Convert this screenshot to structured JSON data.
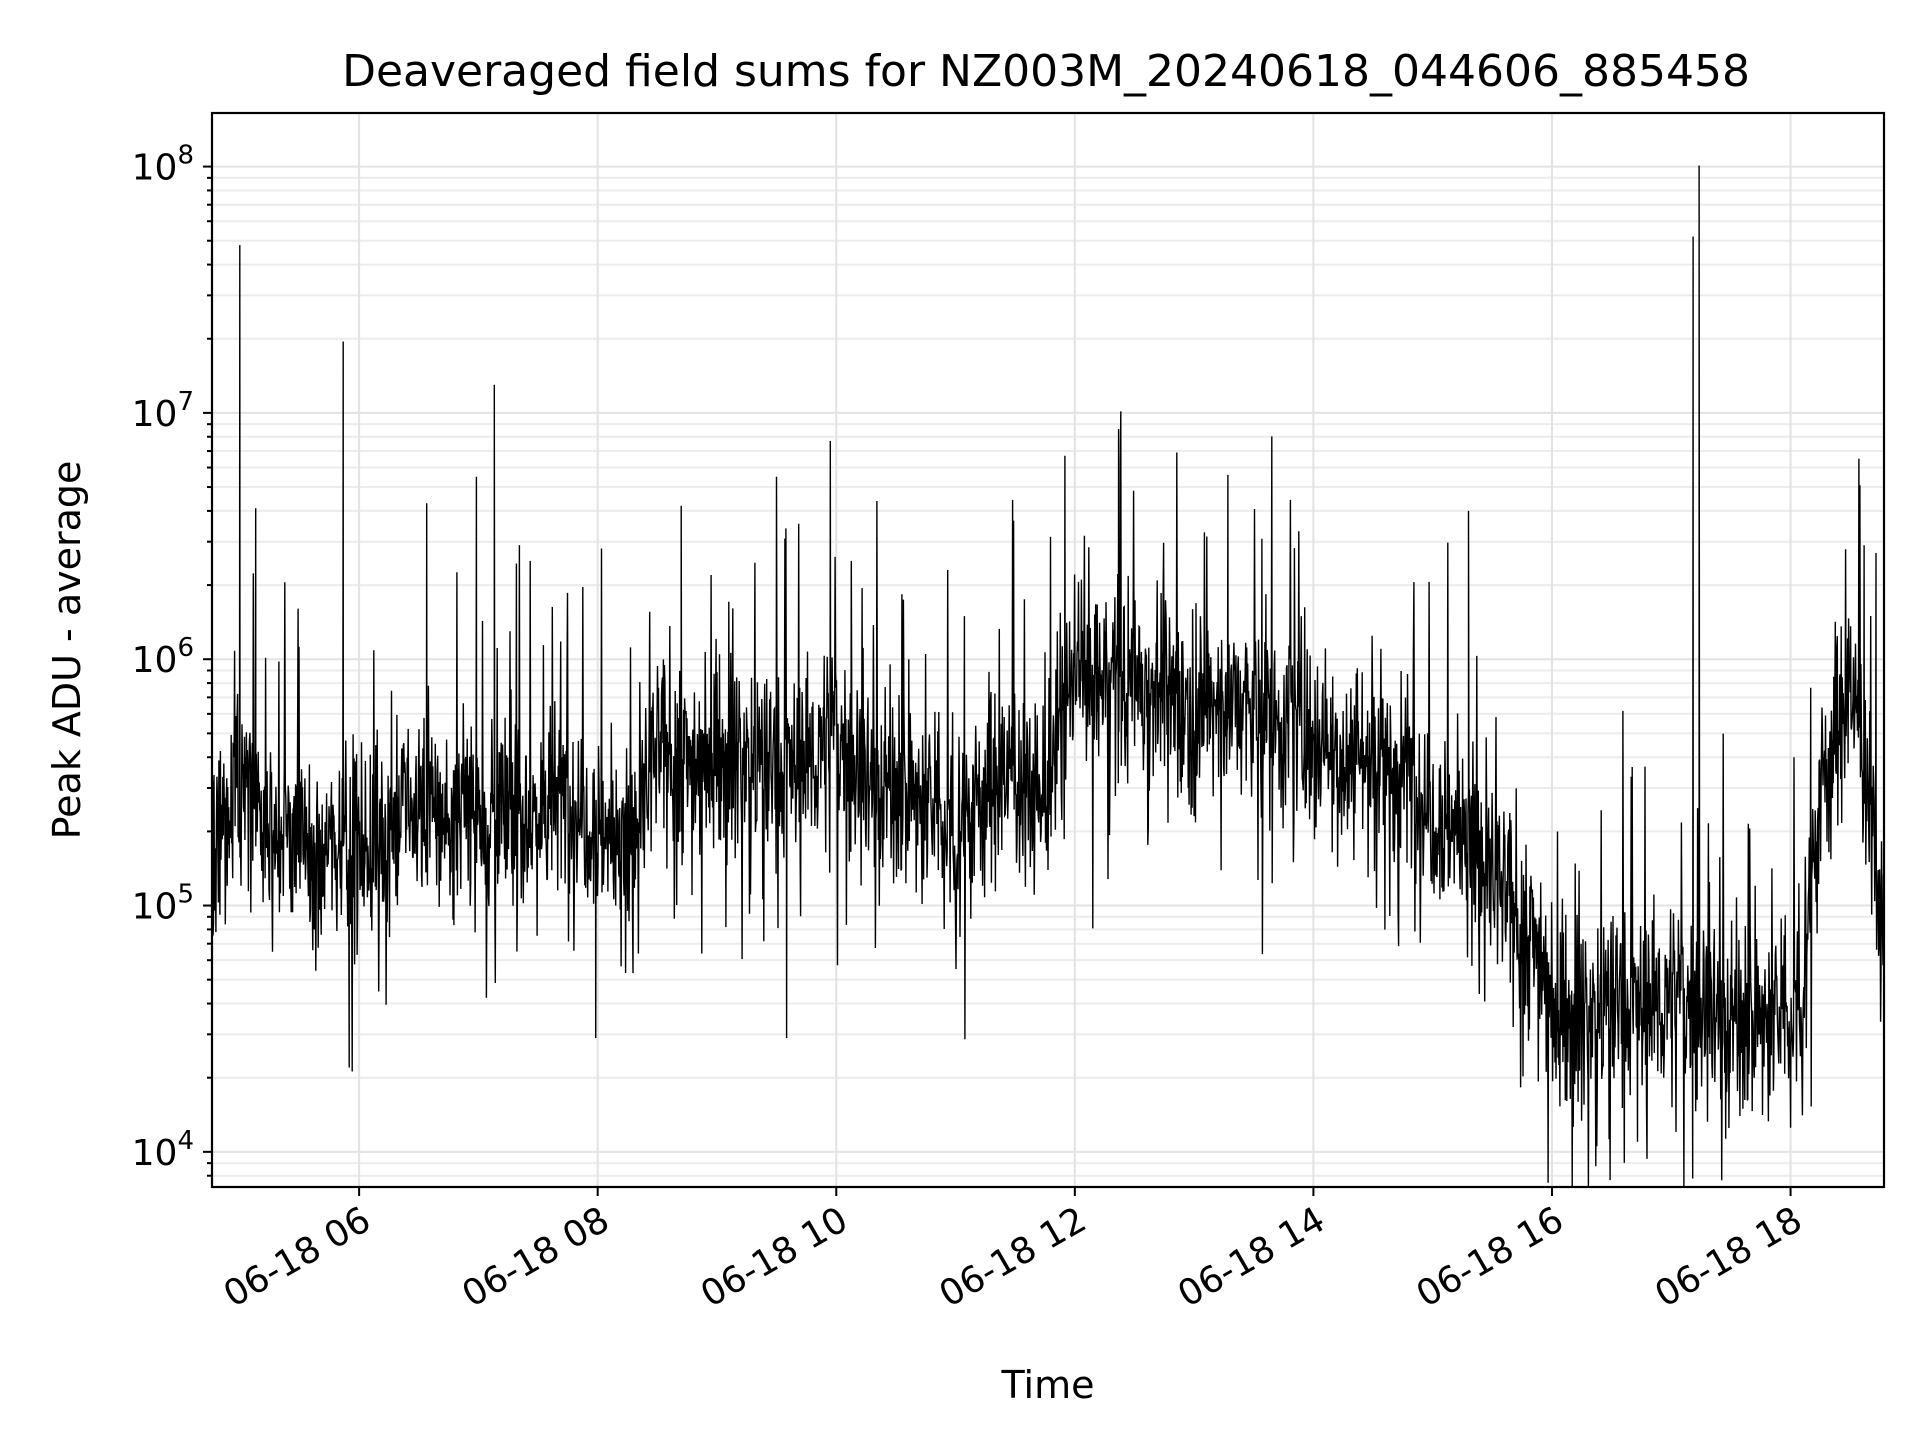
{
  "chart_data": {
    "type": "line",
    "title": "Deaveraged field sums for NZ003M_20240618_044606_885458",
    "xlabel": "Time",
    "ylabel": "Peak ADU - average",
    "yscale": "log",
    "ylim": [
      7200,
      165000000
    ],
    "xlim": [
      "06-18 04:46",
      "06-18 18:47"
    ],
    "x_ticks": [
      "06-18 06",
      "06-18 08",
      "06-18 10",
      "06-18 12",
      "06-18 14",
      "06-18 16",
      "06-18 18"
    ],
    "y_ticks": [
      {
        "base": "10",
        "exp": "4",
        "value": 10000
      },
      {
        "base": "10",
        "exp": "5",
        "value": 100000
      },
      {
        "base": "10",
        "exp": "6",
        "value": 1000000
      },
      {
        "base": "10",
        "exp": "7",
        "value": 10000000
      },
      {
        "base": "10",
        "exp": "8",
        "value": 100000000
      }
    ],
    "grid": true,
    "series": [
      {
        "color": "#000000",
        "x": [
          "06-18 04:46",
          "06-18 05:00",
          "06-18 05:10",
          "06-18 05:20",
          "06-18 05:30",
          "06-18 05:40",
          "06-18 05:50",
          "06-18 06:00",
          "06-18 06:15",
          "06-18 06:30",
          "06-18 06:45",
          "06-18 07:00",
          "06-18 07:15",
          "06-18 07:30",
          "06-18 07:45",
          "06-18 08:00",
          "06-18 08:15",
          "06-18 08:30",
          "06-18 08:45",
          "06-18 09:00",
          "06-18 09:15",
          "06-18 09:30",
          "06-18 09:45",
          "06-18 10:00",
          "06-18 10:15",
          "06-18 10:30",
          "06-18 10:45",
          "06-18 11:00",
          "06-18 11:15",
          "06-18 11:30",
          "06-18 11:45",
          "06-18 12:00",
          "06-18 12:15",
          "06-18 12:30",
          "06-18 12:45",
          "06-18 13:00",
          "06-18 13:15",
          "06-18 13:30",
          "06-18 13:45",
          "06-18 14:00",
          "06-18 14:15",
          "06-18 14:30",
          "06-18 14:45",
          "06-18 15:00",
          "06-18 15:15",
          "06-18 15:30",
          "06-18 15:45",
          "06-18 15:55",
          "06-18 16:00",
          "06-18 16:15",
          "06-18 16:30",
          "06-18 16:45",
          "06-18 17:00",
          "06-18 17:15",
          "06-18 17:30",
          "06-18 17:45",
          "06-18 18:00",
          "06-18 18:05",
          "06-18 18:15",
          "06-18 18:30",
          "06-18 18:40",
          "06-18 18:47"
        ],
        "y": [
          150000,
          400000,
          250000,
          200000,
          180000,
          150000,
          200000,
          170000,
          200000,
          260000,
          220000,
          250000,
          230000,
          240000,
          280000,
          220000,
          160000,
          420000,
          380000,
          420000,
          400000,
          350000,
          380000,
          500000,
          330000,
          300000,
          250000,
          210000,
          300000,
          360000,
          260000,
          900000,
          800000,
          850000,
          750000,
          600000,
          700000,
          600000,
          580000,
          500000,
          400000,
          420000,
          350000,
          250000,
          200000,
          130000,
          80000,
          65000,
          38000,
          35000,
          40000,
          38000,
          42000,
          40000,
          35000,
          33000,
          35000,
          45000,
          300000,
          800000,
          300000,
          60000
        ]
      }
    ],
    "spikes": [
      {
        "x": "06-18 05:00",
        "y": 48000000
      },
      {
        "x": "06-18 05:52",
        "y": 19500000
      },
      {
        "x": "06-18 07:08",
        "y": 13000000
      },
      {
        "x": "06-18 06:59",
        "y": 5500000
      },
      {
        "x": "06-18 06:34",
        "y": 4300000
      },
      {
        "x": "06-18 05:08",
        "y": 4100000
      },
      {
        "x": "06-18 08:42",
        "y": 4200000
      },
      {
        "x": "06-18 09:57",
        "y": 7700000
      },
      {
        "x": "06-18 11:55",
        "y": 6700000
      },
      {
        "x": "06-18 12:22",
        "y": 8600000
      },
      {
        "x": "06-18 13:17",
        "y": 5600000
      },
      {
        "x": "06-18 15:18",
        "y": 4000000
      },
      {
        "x": "06-18 17:11",
        "y": 52000000
      },
      {
        "x": "06-18 17:14",
        "y": 101000000
      },
      {
        "x": "06-18 18:37",
        "y": 2900000
      },
      {
        "x": "06-18 18:43",
        "y": 2700000
      }
    ],
    "dips": [
      {
        "x": "06-18 05:55",
        "y": 22000
      },
      {
        "x": "06-18 07:59",
        "y": 29000
      },
      {
        "x": "06-18 09:35",
        "y": 29000
      },
      {
        "x": "06-18 15:58",
        "y": 13000
      },
      {
        "x": "06-18 16:43",
        "y": 11000
      },
      {
        "x": "06-18 17:29",
        "y": 12500
      }
    ]
  }
}
